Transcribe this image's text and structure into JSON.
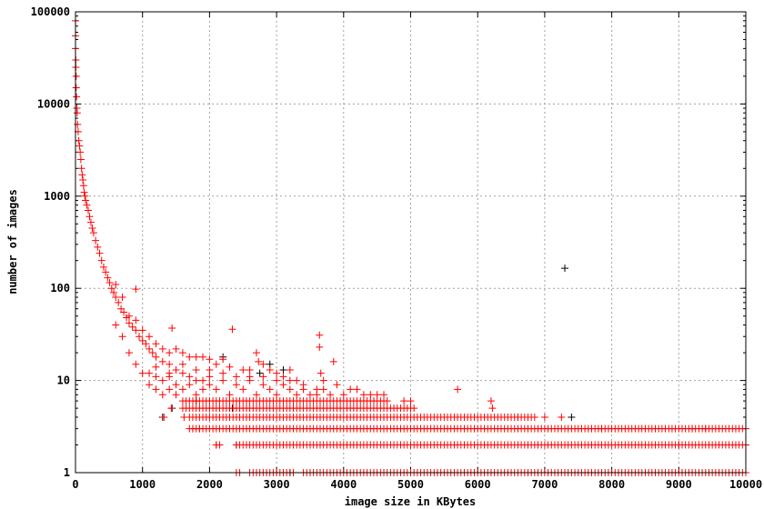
{
  "chart_data": {
    "type": "scatter",
    "title": "",
    "xlabel": "image size in KBytes",
    "ylabel": "number of images",
    "xlim": [
      0,
      10000
    ],
    "ylim": [
      1,
      100000
    ],
    "yscale": "log",
    "grid": true,
    "legend": "none",
    "marker": "plus",
    "x_ticks": [
      "0",
      "1000",
      "2000",
      "3000",
      "4000",
      "5000",
      "6000",
      "7000",
      "8000",
      "9000",
      "10000"
    ],
    "y_ticks": [
      "1",
      "10",
      "100",
      "1000",
      "10000",
      "100000"
    ],
    "series": [
      {
        "color": "#000000",
        "points": [
          [
            7300,
            165
          ],
          [
            1300,
            4
          ],
          [
            1440,
            5
          ],
          [
            2340,
            5
          ],
          [
            2750,
            12
          ],
          [
            2900,
            15
          ],
          [
            3100,
            13
          ],
          [
            2400,
            2
          ],
          [
            2700,
            1
          ],
          [
            3200,
            1
          ],
          [
            7400,
            4
          ],
          [
            5000,
            2
          ],
          [
            9000,
            2
          ],
          [
            1800,
            6
          ],
          [
            2200,
            18
          ]
        ]
      },
      {
        "color": "#ff0000",
        "points": [
          [
            0,
            80000
          ],
          [
            0,
            55000
          ],
          [
            0,
            40000
          ],
          [
            5,
            30000
          ],
          [
            5,
            25000
          ],
          [
            10,
            20000
          ],
          [
            10,
            15000
          ],
          [
            15,
            12000
          ],
          [
            20,
            9000
          ],
          [
            25,
            8000
          ],
          [
            30,
            6000
          ],
          [
            40,
            5000
          ],
          [
            50,
            4000
          ],
          [
            60,
            3500
          ],
          [
            70,
            3000
          ],
          [
            80,
            2500
          ],
          [
            90,
            2000
          ],
          [
            100,
            1700
          ],
          [
            110,
            1500
          ],
          [
            120,
            1300
          ],
          [
            130,
            1100
          ],
          [
            140,
            1000
          ],
          [
            150,
            900
          ],
          [
            170,
            800
          ],
          [
            190,
            700
          ],
          [
            210,
            600
          ],
          [
            230,
            520
          ],
          [
            250,
            450
          ],
          [
            270,
            400
          ],
          [
            300,
            330
          ],
          [
            330,
            280
          ],
          [
            360,
            240
          ],
          [
            390,
            200
          ],
          [
            420,
            170
          ],
          [
            450,
            150
          ],
          [
            480,
            130
          ],
          [
            510,
            115
          ],
          [
            540,
            100
          ],
          [
            570,
            90
          ],
          [
            600,
            80
          ],
          [
            640,
            70
          ],
          [
            680,
            60
          ],
          [
            720,
            55
          ],
          [
            760,
            48
          ],
          [
            800,
            42
          ],
          [
            850,
            38
          ],
          [
            900,
            35
          ],
          [
            900,
            98
          ],
          [
            950,
            30
          ],
          [
            1000,
            27
          ],
          [
            1050,
            25
          ],
          [
            1100,
            22
          ],
          [
            1150,
            20
          ],
          [
            1200,
            18
          ],
          [
            1300,
            16
          ],
          [
            1400,
            15
          ],
          [
            1440,
            37
          ],
          [
            1500,
            13
          ],
          [
            1600,
            12
          ],
          [
            1700,
            11
          ],
          [
            1800,
            10
          ],
          [
            1900,
            10
          ],
          [
            2000,
            9
          ],
          [
            600,
            110
          ],
          [
            700,
            80
          ],
          [
            800,
            50
          ],
          [
            900,
            45
          ],
          [
            1000,
            35
          ],
          [
            1100,
            30
          ],
          [
            1200,
            25
          ],
          [
            1300,
            22
          ],
          [
            1400,
            20
          ],
          [
            1500,
            22
          ],
          [
            1600,
            20
          ],
          [
            1700,
            18
          ],
          [
            1800,
            18
          ],
          [
            1900,
            18
          ],
          [
            2000,
            17
          ],
          [
            2100,
            15
          ],
          [
            2200,
            17
          ],
          [
            2300,
            14
          ],
          [
            2340,
            36
          ],
          [
            2500,
            13
          ],
          [
            2600,
            13
          ],
          [
            2700,
            20
          ],
          [
            2730,
            16
          ],
          [
            2800,
            15
          ],
          [
            2900,
            13
          ],
          [
            3000,
            12
          ],
          [
            3100,
            11
          ],
          [
            3200,
            13
          ],
          [
            3300,
            10
          ],
          [
            3400,
            9
          ],
          [
            3600,
            8
          ],
          [
            3640,
            31
          ],
          [
            3640,
            23
          ],
          [
            3660,
            12
          ],
          [
            3700,
            10
          ],
          [
            3850,
            16
          ],
          [
            3900,
            9
          ],
          [
            4100,
            8
          ],
          [
            4200,
            8
          ],
          [
            4300,
            7
          ],
          [
            4600,
            7
          ],
          [
            4900,
            6
          ],
          [
            5000,
            6
          ],
          [
            5700,
            8
          ],
          [
            6200,
            6
          ],
          [
            6220,
            5
          ],
          [
            6600,
            4
          ],
          [
            7000,
            4
          ],
          [
            7250,
            4
          ],
          [
            7850,
            3
          ],
          [
            9200,
            3
          ],
          [
            9400,
            3
          ],
          [
            600,
            40
          ],
          [
            700,
            30
          ],
          [
            800,
            20
          ],
          [
            900,
            15
          ],
          [
            1000,
            12
          ],
          [
            1100,
            9
          ],
          [
            1200,
            8
          ],
          [
            1300,
            7
          ],
          [
            1320,
            4
          ],
          [
            1400,
            8
          ],
          [
            1430,
            5
          ],
          [
            1500,
            7
          ],
          [
            1620,
            4
          ],
          [
            1750,
            3
          ],
          [
            1850,
            3
          ],
          [
            2100,
            2
          ],
          [
            1100,
            12
          ],
          [
            1200,
            11
          ],
          [
            1300,
            10
          ],
          [
            1400,
            11
          ],
          [
            1500,
            9
          ],
          [
            1600,
            8
          ],
          [
            1700,
            9
          ],
          [
            1800,
            7
          ],
          [
            1900,
            8
          ],
          [
            2000,
            11
          ],
          [
            2100,
            8
          ],
          [
            2200,
            10
          ],
          [
            2300,
            7
          ],
          [
            2400,
            9
          ],
          [
            2500,
            8
          ],
          [
            2600,
            10
          ],
          [
            2700,
            7
          ],
          [
            2800,
            9
          ],
          [
            2900,
            8
          ],
          [
            3000,
            7
          ],
          [
            3100,
            9
          ],
          [
            3200,
            8
          ],
          [
            3300,
            7
          ],
          [
            3400,
            8
          ],
          [
            3500,
            7
          ],
          [
            3600,
            7
          ],
          [
            3700,
            8
          ],
          [
            3800,
            7
          ],
          [
            4000,
            7
          ],
          [
            4400,
            7
          ],
          [
            4500,
            7
          ],
          [
            1200,
            14
          ],
          [
            1400,
            12
          ],
          [
            1600,
            15
          ],
          [
            1800,
            13
          ],
          [
            2000,
            13
          ],
          [
            2200,
            12
          ],
          [
            2400,
            11
          ],
          [
            2600,
            11
          ],
          [
            2800,
            11
          ],
          [
            3000,
            10
          ],
          [
            3200,
            10
          ]
        ],
        "rows": [
          {
            "y": 6,
            "x": [
              1600,
              1700,
              1800,
              1900,
              2000,
              2100,
              2200,
              2300,
              2400,
              2500,
              2600,
              2700,
              2800,
              2900,
              3000,
              3100,
              3200,
              3300,
              3400,
              3500,
              3600,
              3700,
              3800,
              3900,
              4000,
              4100,
              4200,
              4300,
              4400,
              4500,
              4600
            ]
          },
          {
            "y": 5,
            "x": [
              1600,
              1700,
              1800,
              1900,
              2000,
              2100,
              2200,
              2300,
              2400,
              2500,
              2600,
              2700,
              2800,
              2900,
              3000,
              3100,
              3200,
              3300,
              3400,
              3500,
              3600,
              3700,
              3800,
              3900,
              4000,
              4100,
              4200,
              4300,
              4400,
              4500,
              4600,
              4700,
              4800,
              4900,
              5000
            ]
          },
          {
            "y": 4,
            "x": [
              1700,
              1800,
              1900,
              2000,
              2100,
              2200,
              2300,
              2400,
              2500,
              2600,
              2700,
              2800,
              2900,
              3000,
              3100,
              3200,
              3300,
              3400,
              3500,
              3600,
              3700,
              3800,
              3900,
              4000,
              4100,
              4200,
              4300,
              4400,
              4500,
              4600,
              4700,
              4800,
              4900,
              5000,
              5100,
              5200,
              5300,
              5400,
              5500,
              5600,
              5700,
              5800,
              5900,
              6000,
              6100,
              6200,
              6300,
              6400,
              6500,
              6600,
              6700,
              6800
            ]
          },
          {
            "y": 3,
            "x": [
              1700,
              1800,
              1900,
              2000,
              2100,
              2200,
              2300,
              2400,
              2500,
              2600,
              2700,
              2800,
              2900,
              3000,
              3100,
              3200,
              3300,
              3400,
              3500,
              3600,
              3700,
              3800,
              3900,
              4000,
              4100,
              4200,
              4300,
              4400,
              4500,
              4600,
              4700,
              4800,
              4900,
              5000,
              5100,
              5200,
              5300,
              5400,
              5500,
              5600,
              5700,
              5800,
              5900,
              6000,
              6100,
              6200,
              6300,
              6400,
              6500,
              6600,
              6700,
              6800,
              6900,
              7000,
              7100,
              7200,
              7300,
              7400,
              7500,
              7600,
              7700,
              7800,
              7900,
              8000,
              8100,
              8200,
              8300,
              8400,
              8500,
              8600,
              8700,
              8800,
              8900,
              9000,
              9100,
              9200,
              9300,
              9400,
              9500,
              9600,
              9700,
              9800,
              9900,
              10000
            ]
          },
          {
            "y": 2,
            "x": [
              2100,
              2400,
              2500,
              2600,
              2700,
              2800,
              2900,
              3000,
              3100,
              3200,
              3300,
              3400,
              3500,
              3600,
              3700,
              3800,
              3900,
              4000,
              4100,
              4200,
              4300,
              4400,
              4500,
              4600,
              4700,
              4800,
              4900,
              5000,
              5100,
              5200,
              5300,
              5400,
              5500,
              5600,
              5700,
              5800,
              5900,
              6000,
              6100,
              6200,
              6300,
              6400,
              6500,
              6600,
              6700,
              6800,
              6900,
              7000,
              7100,
              7200,
              7300,
              7400,
              7500,
              7600,
              7700,
              7800,
              7900,
              8000,
              8100,
              8200,
              8300,
              8400,
              8500,
              8600,
              8700,
              8800,
              8900,
              9000,
              9100,
              9200,
              9300,
              9400,
              9500,
              9600,
              9700,
              9800,
              9900,
              10000
            ]
          },
          {
            "y": 1,
            "x": [
              2400,
              2600,
              2700,
              2800,
              2900,
              3000,
              3100,
              3200,
              3400,
              3500,
              3600,
              3700,
              3800,
              3900,
              4000,
              4100,
              4200,
              4300,
              4400,
              4500,
              4600,
              4700,
              4800,
              4900,
              5000,
              5100,
              5200,
              5300,
              5400,
              5500,
              5600,
              5700,
              5800,
              5900,
              6000,
              6100,
              6200,
              6300,
              6400,
              6500,
              6600,
              6700,
              6800,
              6900,
              7000,
              7100,
              7200,
              7300,
              7400,
              7500,
              7600,
              7700,
              7800,
              7900,
              8000,
              8100,
              8200,
              8300,
              8400,
              8500,
              8600,
              8700,
              8800,
              8900,
              9000,
              9100,
              9200,
              9300,
              9400,
              9500,
              9600,
              9700,
              9800,
              9900,
              10000
            ]
          }
        ]
      }
    ]
  }
}
